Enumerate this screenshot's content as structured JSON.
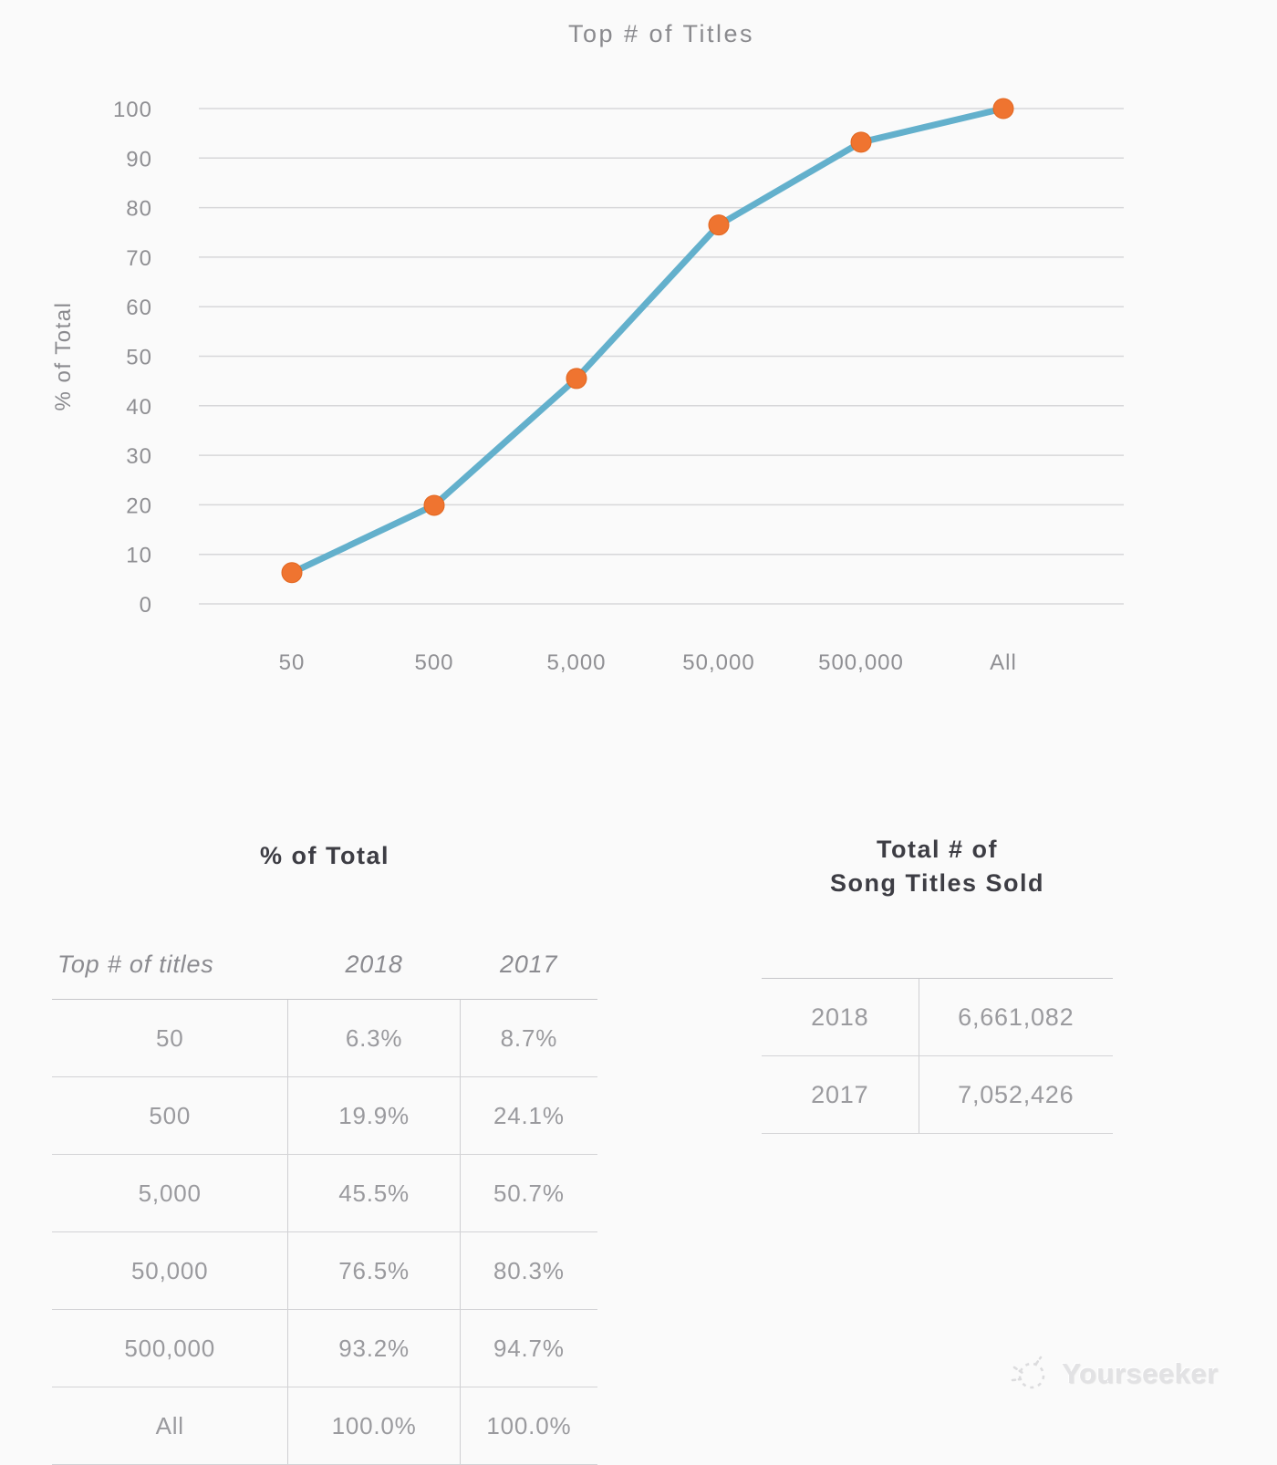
{
  "chart_data": {
    "type": "line",
    "title": "Top # of Titles",
    "xlabel": "",
    "ylabel": "% of Total",
    "categories": [
      "50",
      "500",
      "5,000",
      "50,000",
      "500,000",
      "All"
    ],
    "series": [
      {
        "name": "2018",
        "values": [
          6.3,
          19.9,
          45.5,
          76.5,
          93.2,
          100.0
        ],
        "line_color": "#63B0CC",
        "marker_color": "#EF7430",
        "marker_edge_color": "#E2661F"
      }
    ],
    "ylim": [
      0,
      100
    ],
    "yticks": [
      0,
      10,
      20,
      30,
      40,
      50,
      60,
      70,
      80,
      90,
      100
    ],
    "grid": true,
    "legend_position": "none",
    "grid_color": "#d7d7d9",
    "axis_text_color": "#8f8f93",
    "title_color": "#8a8a8e"
  },
  "tables": {
    "percent_of_total": {
      "title": "% of Total",
      "headers": [
        "Top # of titles",
        "2018",
        "2017"
      ],
      "rows": [
        [
          "50",
          "6.3%",
          "8.7%"
        ],
        [
          "500",
          "19.9%",
          "24.1%"
        ],
        [
          "5,000",
          "45.5%",
          "50.7%"
        ],
        [
          "50,000",
          "76.5%",
          "80.3%"
        ],
        [
          "500,000",
          "93.2%",
          "94.7%"
        ],
        [
          "All",
          "100.0%",
          "100.0%"
        ]
      ]
    },
    "titles_sold": {
      "title_line1": "Total # of",
      "title_line2": "Song Titles Sold",
      "rows": [
        [
          "2018",
          "6,661,082"
        ],
        [
          "2017",
          "7,052,426"
        ]
      ]
    }
  },
  "watermark": {
    "text": "Yourseeker"
  }
}
